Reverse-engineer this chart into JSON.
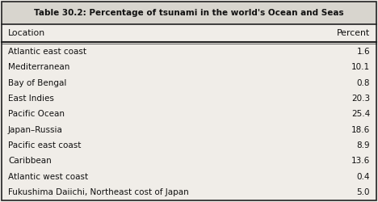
{
  "title": "Table 30.2: Percentage of tsunami in the world's Ocean and Seas",
  "col1_header": "Location",
  "col2_header": "Percent",
  "rows": [
    [
      "Atlantic east coast",
      "1.6"
    ],
    [
      "Mediterranean",
      "10.1"
    ],
    [
      "Bay of Bengal",
      "0.8"
    ],
    [
      "East Indies",
      "20.3"
    ],
    [
      "Pacific Ocean",
      "25.4"
    ],
    [
      "Japan–Russia",
      "18.6"
    ],
    [
      "Pacific east coast",
      "8.9"
    ],
    [
      "Caribbean",
      "13.6"
    ],
    [
      "Atlantic west coast",
      "0.4"
    ],
    [
      "Fukushima Daiichi, Northeast cost of Japan",
      "5.0"
    ]
  ],
  "bg_color": "#f0ede8",
  "title_bg": "#d8d5ce",
  "border_color": "#222222",
  "text_color": "#111111",
  "title_fontsize": 7.5,
  "header_fontsize": 7.8,
  "row_fontsize": 7.5
}
